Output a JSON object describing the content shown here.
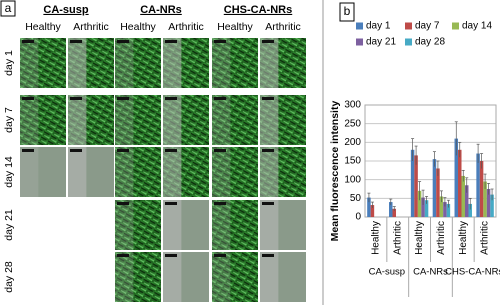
{
  "image_panel": {
    "panel_label": "a",
    "columns": [
      {
        "label": "CA-susp",
        "subheaders": [
          "Healthy",
          "Arthritic"
        ]
      },
      {
        "label": "CA-NRs",
        "subheaders": [
          "Healthy",
          "Arthritic"
        ]
      },
      {
        "label": "CHS-CA-NRs",
        "subheaders": [
          "Healthy",
          "Arthritic"
        ]
      }
    ],
    "rows": [
      "day 1",
      "day 7",
      "day 14",
      "day 21",
      "day 28"
    ]
  },
  "chart_data": {
    "type": "bar",
    "panel_label": "b",
    "ylabel": "Mean fluorescence intensity",
    "categories": [
      "Healthy",
      "Arthritic",
      "Healthy",
      "Arthritic",
      "Healthy",
      "Arthritic"
    ],
    "groups": [
      "CA-susp",
      "CA-NRs",
      "CHS-CA-NRs"
    ],
    "series": [
      {
        "name": "day 1",
        "color": "#4a7ebb",
        "values": [
          52,
          40,
          180,
          155,
          210,
          170
        ],
        "errors": [
          12,
          8,
          30,
          20,
          45,
          25
        ]
      },
      {
        "name": "day 7",
        "color": "#be4b48",
        "values": [
          32,
          22,
          165,
          130,
          180,
          150
        ],
        "errors": [
          8,
          6,
          25,
          20,
          20,
          20
        ]
      },
      {
        "name": "day 14",
        "color": "#98b954",
        "values": [
          null,
          null,
          70,
          55,
          110,
          95
        ],
        "errors": [
          null,
          null,
          25,
          15,
          15,
          20
        ]
      },
      {
        "name": "day 21",
        "color": "#7d60a0",
        "values": [
          null,
          null,
          52,
          40,
          85,
          75
        ],
        "errors": [
          null,
          null,
          20,
          12,
          20,
          15
        ]
      },
      {
        "name": "day 28",
        "color": "#46aac5",
        "values": [
          null,
          null,
          45,
          35,
          35,
          60
        ],
        "errors": [
          null,
          null,
          10,
          10,
          15,
          15
        ]
      }
    ],
    "ylim": [
      0,
      300
    ],
    "yticks": [
      0,
      50,
      100,
      150,
      200,
      250,
      300
    ],
    "grid": true
  }
}
